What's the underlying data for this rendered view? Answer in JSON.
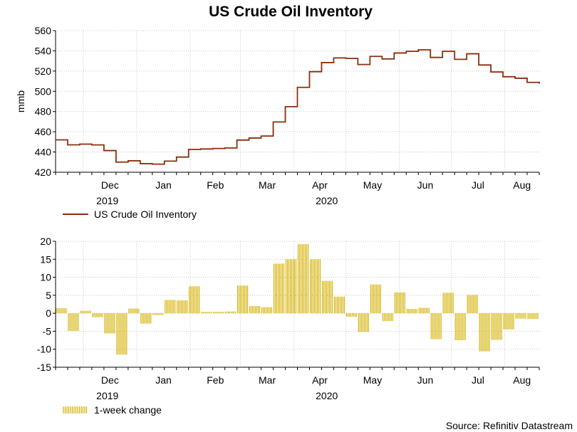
{
  "title": "US Crude Oil Inventory",
  "source": "Source: Refinitiv Datastream",
  "colors": {
    "line": "#8b2e0f",
    "bars": "#d4b000",
    "grid": "#c8c8c8"
  },
  "chart_data": [
    {
      "type": "line",
      "ylabel": "mmb",
      "ylim": [
        420,
        560
      ],
      "yticks": [
        420,
        440,
        460,
        480,
        500,
        520,
        540,
        560
      ],
      "xlim": [
        "2019-11-15",
        "2020-08-21"
      ],
      "month_labels": [
        "Dec",
        "Jan",
        "Feb",
        "Mar",
        "Apr",
        "May",
        "Jun",
        "Jul",
        "Aug"
      ],
      "year_labels": [
        "2019",
        "2020"
      ],
      "grid": true,
      "legend": "bottom-left",
      "series": [
        {
          "name": "US Crude Oil Inventory",
          "x": [
            "2019-11-15",
            "2019-11-22",
            "2019-11-29",
            "2019-12-06",
            "2019-12-13",
            "2019-12-20",
            "2019-12-27",
            "2020-01-03",
            "2020-01-10",
            "2020-01-17",
            "2020-01-24",
            "2020-01-31",
            "2020-02-07",
            "2020-02-14",
            "2020-02-21",
            "2020-02-28",
            "2020-03-06",
            "2020-03-13",
            "2020-03-20",
            "2020-03-27",
            "2020-04-03",
            "2020-04-10",
            "2020-04-17",
            "2020-04-24",
            "2020-05-01",
            "2020-05-08",
            "2020-05-15",
            "2020-05-22",
            "2020-05-29",
            "2020-06-05",
            "2020-06-12",
            "2020-06-19",
            "2020-06-26",
            "2020-07-03",
            "2020-07-10",
            "2020-07-17",
            "2020-07-24",
            "2020-07-31",
            "2020-08-07",
            "2020-08-14",
            "2020-08-21"
          ],
          "values": [
            452.0,
            447.1,
            447.8,
            447.0,
            441.4,
            430.0,
            431.3,
            428.5,
            428.0,
            431.0,
            435.0,
            442.5,
            443.0,
            443.5,
            444.0,
            451.8,
            453.8,
            455.8,
            469.7,
            484.8,
            503.9,
            519.4,
            528.4,
            533.0,
            532.5,
            526.5,
            534.5,
            532.0,
            537.9,
            539.5,
            541.0,
            533.5,
            539.5,
            531.6,
            537.1,
            526.0,
            519.1,
            514.4,
            512.9,
            508.8,
            507.5
          ]
        }
      ]
    },
    {
      "type": "bar",
      "ylim": [
        -15,
        20
      ],
      "yticks": [
        -15,
        -10,
        -5,
        0,
        5,
        10,
        15,
        20
      ],
      "xlim": [
        "2019-11-15",
        "2020-08-21"
      ],
      "month_labels": [
        "Dec",
        "Jan",
        "Feb",
        "Mar",
        "Apr",
        "May",
        "Jun",
        "Jul",
        "Aug"
      ],
      "year_labels": [
        "2019",
        "2020"
      ],
      "grid": true,
      "legend": "bottom-left",
      "series": [
        {
          "name": "1-week change",
          "x": [
            "2019-11-15",
            "2019-11-22",
            "2019-11-29",
            "2019-12-06",
            "2019-12-13",
            "2019-12-20",
            "2019-12-27",
            "2020-01-03",
            "2020-01-10",
            "2020-01-17",
            "2020-01-24",
            "2020-01-31",
            "2020-02-07",
            "2020-02-14",
            "2020-02-21",
            "2020-02-28",
            "2020-03-06",
            "2020-03-13",
            "2020-03-20",
            "2020-03-27",
            "2020-04-03",
            "2020-04-10",
            "2020-04-17",
            "2020-04-24",
            "2020-05-01",
            "2020-05-08",
            "2020-05-15",
            "2020-05-22",
            "2020-05-29",
            "2020-06-05",
            "2020-06-12",
            "2020-06-19",
            "2020-06-26",
            "2020-07-03",
            "2020-07-10",
            "2020-07-17",
            "2020-07-24",
            "2020-07-31",
            "2020-08-07",
            "2020-08-14",
            "2020-08-21"
          ],
          "values": [
            1.4,
            -4.9,
            0.7,
            -1.1,
            -5.6,
            -11.5,
            1.3,
            -2.9,
            -0.5,
            3.7,
            3.6,
            7.5,
            0.4,
            0.4,
            0.5,
            7.7,
            2.0,
            1.7,
            13.8,
            15.0,
            19.2,
            15.0,
            9.0,
            4.6,
            -1.0,
            -5.2,
            8.0,
            -2.2,
            5.8,
            1.2,
            1.5,
            -7.2,
            5.7,
            -7.5,
            5.1,
            -10.6,
            -7.4,
            -4.5,
            -1.5,
            -1.6,
            -4.7
          ]
        }
      ]
    }
  ]
}
